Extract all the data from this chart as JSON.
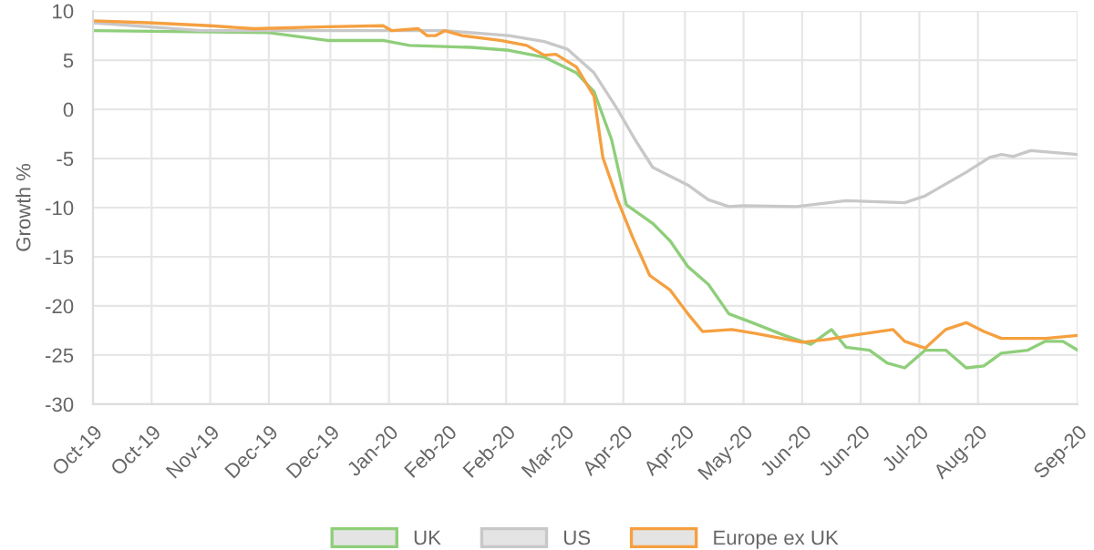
{
  "chart_data": {
    "type": "line",
    "ylabel": "Growth %",
    "xlim": [
      "2019-10-04",
      "2020-09-04"
    ],
    "xticks": [
      {
        "value": "2019-10-04",
        "label": "Oct-19"
      },
      {
        "value": "2019-10-24",
        "label": "Oct-19"
      },
      {
        "value": "2019-11-13",
        "label": "Nov-19"
      },
      {
        "value": "2019-12-03",
        "label": "Dec-19"
      },
      {
        "value": "2019-12-24",
        "label": "Dec-19"
      },
      {
        "value": "2020-01-13",
        "label": "Jan-20"
      },
      {
        "value": "2020-02-02",
        "label": "Feb-20"
      },
      {
        "value": "2020-02-22",
        "label": "Feb-20"
      },
      {
        "value": "2020-03-13",
        "label": "Mar-20"
      },
      {
        "value": "2020-04-02",
        "label": "Apr-20"
      },
      {
        "value": "2020-04-23",
        "label": "Apr-20"
      },
      {
        "value": "2020-05-13",
        "label": "May-20"
      },
      {
        "value": "2020-06-02",
        "label": "Jun-20"
      },
      {
        "value": "2020-06-22",
        "label": "Jun-20"
      },
      {
        "value": "2020-07-12",
        "label": "Jul-20"
      },
      {
        "value": "2020-08-01",
        "label": "Aug-20"
      },
      {
        "value": "2020-09-04",
        "label": "Sep-20"
      }
    ],
    "ylim": [
      -30,
      10
    ],
    "yticks": [
      -30,
      -25,
      -20,
      -15,
      -10,
      -5,
      0,
      5,
      10
    ],
    "grid": true,
    "legend": "bottom",
    "marker": "none",
    "line_style": "solid",
    "series": [
      {
        "name": "UK",
        "color": "#8fce7a",
        "x": [
          "2019-10-04",
          "2019-12-03",
          "2019-12-23",
          "2020-01-11",
          "2020-01-20",
          "2020-02-10",
          "2020-02-23",
          "2020-03-06",
          "2020-03-17",
          "2020-03-23",
          "2020-03-29",
          "2020-04-03",
          "2020-04-12",
          "2020-04-18",
          "2020-04-24",
          "2020-05-01",
          "2020-05-08",
          "2020-05-16",
          "2020-05-27",
          "2020-06-05",
          "2020-06-12",
          "2020-06-17",
          "2020-06-25",
          "2020-07-01",
          "2020-07-07",
          "2020-07-14",
          "2020-07-21",
          "2020-07-28",
          "2020-08-03",
          "2020-08-09",
          "2020-08-18",
          "2020-08-24",
          "2020-08-30",
          "2020-09-04"
        ],
        "values": [
          8,
          7.8,
          7,
          7,
          6.5,
          6.3,
          6,
          5.3,
          3.7,
          1.8,
          -3.1,
          -9.7,
          -11.6,
          -13.4,
          -16,
          -17.8,
          -20.8,
          -21.7,
          -23,
          -23.9,
          -22.4,
          -24.2,
          -24.5,
          -25.8,
          -26.3,
          -24.5,
          -24.5,
          -26.3,
          -26.1,
          -24.8,
          -24.5,
          -23.6,
          -23.6,
          -24.5
        ]
      },
      {
        "name": "US",
        "color": "#c8c8c8",
        "x": [
          "2019-10-04",
          "2019-11-10",
          "2020-01-05",
          "2020-02-01",
          "2020-02-23",
          "2020-03-06",
          "2020-03-14",
          "2020-03-23",
          "2020-03-31",
          "2020-04-06",
          "2020-04-12",
          "2020-04-18",
          "2020-04-24",
          "2020-05-01",
          "2020-05-08",
          "2020-05-13",
          "2020-05-31",
          "2020-06-17",
          "2020-07-07",
          "2020-07-14",
          "2020-07-28",
          "2020-08-05",
          "2020-08-09",
          "2020-08-13",
          "2020-08-19",
          "2020-09-04"
        ],
        "values": [
          8.8,
          8,
          8,
          8,
          7.5,
          6.9,
          6.1,
          3.7,
          0,
          -3.1,
          -5.9,
          -6.8,
          -7.7,
          -9.2,
          -9.9,
          -9.8,
          -9.9,
          -9.3,
          -9.5,
          -8.8,
          -6.4,
          -4.9,
          -4.6,
          -4.8,
          -4.2,
          -4.6
        ]
      },
      {
        "name": "Europe ex UK",
        "color": "#f5a040",
        "x": [
          "2019-10-04",
          "2019-10-23",
          "2019-11-13",
          "2019-11-28",
          "2019-12-23",
          "2020-01-11",
          "2020-01-14",
          "2020-01-23",
          "2020-01-26",
          "2020-01-29",
          "2020-02-01",
          "2020-02-07",
          "2020-02-20",
          "2020-02-29",
          "2020-03-06",
          "2020-03-10",
          "2020-03-17",
          "2020-03-23",
          "2020-03-26",
          "2020-03-31",
          "2020-04-05",
          "2020-04-11",
          "2020-04-18",
          "2020-04-24",
          "2020-04-29",
          "2020-05-09",
          "2020-05-17",
          "2020-06-02",
          "2020-06-11",
          "2020-06-19",
          "2020-07-03",
          "2020-07-07",
          "2020-07-14",
          "2020-07-21",
          "2020-07-28",
          "2020-08-03",
          "2020-08-09",
          "2020-08-24",
          "2020-09-04"
        ],
        "values": [
          9,
          8.8,
          8.5,
          8.2,
          8.4,
          8.5,
          8,
          8.2,
          7.5,
          7.5,
          8,
          7.5,
          7,
          6.5,
          5.5,
          5.6,
          4.3,
          1.3,
          -4.9,
          -9.2,
          -12.9,
          -16.9,
          -18.4,
          -20.8,
          -22.6,
          -22.4,
          -22.8,
          -23.7,
          -23.4,
          -23,
          -22.4,
          -23.6,
          -24.3,
          -22.4,
          -21.7,
          -22.6,
          -23.3,
          -23.3,
          -23
        ]
      }
    ]
  }
}
